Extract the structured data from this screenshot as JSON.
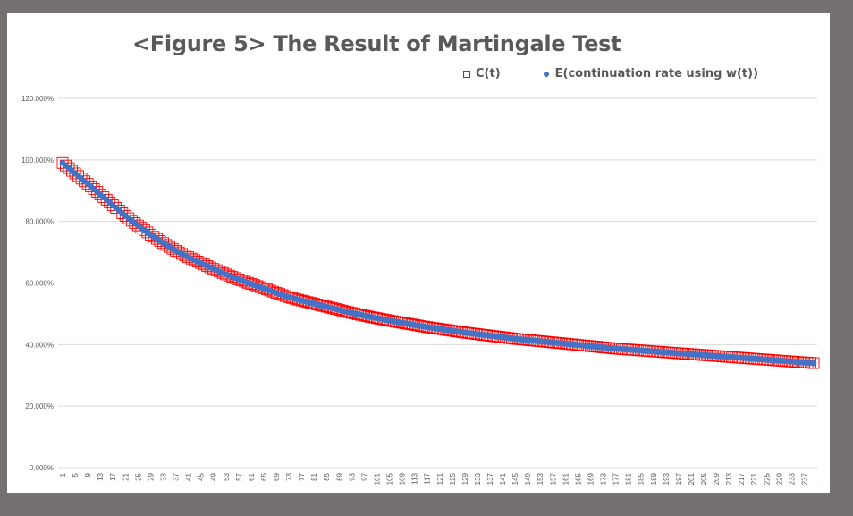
{
  "chart_data": {
    "type": "scatter",
    "title": "<Figure 5> The Result of Martingale Test",
    "xlabel": "",
    "ylabel": "",
    "ylim": [
      0,
      1.2
    ],
    "y_ticks": [
      "0.000%",
      "20.000%",
      "40.000%",
      "60.000%",
      "80.000%",
      "100.000%",
      "120.000%"
    ],
    "y_tick_values": [
      0,
      0.2,
      0.4,
      0.6,
      0.8,
      1.0,
      1.2
    ],
    "x_ticks": [
      1,
      5,
      9,
      13,
      17,
      21,
      25,
      29,
      33,
      37,
      41,
      45,
      49,
      53,
      57,
      61,
      65,
      69,
      73,
      77,
      81,
      85,
      89,
      93,
      97,
      101,
      105,
      109,
      113,
      117,
      121,
      125,
      129,
      133,
      137,
      141,
      145,
      149,
      153,
      157,
      161,
      165,
      169,
      173,
      177,
      181,
      185,
      189,
      193,
      197,
      201,
      205,
      209,
      213,
      217,
      221,
      225,
      229,
      233,
      237
    ],
    "x_range": [
      1,
      240
    ],
    "grid": true,
    "legend_position": "top",
    "series": [
      {
        "name": "C(t)",
        "marker": "square",
        "color": "#ff0000",
        "x": [
          1,
          5,
          9,
          13,
          17,
          21,
          25,
          29,
          33,
          37,
          41,
          45,
          49,
          53,
          57,
          61,
          65,
          69,
          73,
          77,
          81,
          85,
          89,
          93,
          97,
          101,
          105,
          109,
          113,
          117,
          121,
          125,
          129,
          133,
          137,
          141,
          145,
          149,
          153,
          157,
          161,
          165,
          169,
          173,
          177,
          181,
          185,
          189,
          193,
          197,
          201,
          205,
          209,
          213,
          217,
          221,
          225,
          229,
          233,
          237,
          240
        ],
        "values": [
          0.99,
          0.956,
          0.922,
          0.888,
          0.853,
          0.818,
          0.787,
          0.757,
          0.73,
          0.705,
          0.684,
          0.665,
          0.646,
          0.628,
          0.612,
          0.597,
          0.583,
          0.568,
          0.554,
          0.543,
          0.533,
          0.523,
          0.513,
          0.503,
          0.494,
          0.486,
          0.478,
          0.471,
          0.464,
          0.457,
          0.451,
          0.445,
          0.439,
          0.434,
          0.429,
          0.424,
          0.419,
          0.415,
          0.411,
          0.407,
          0.403,
          0.399,
          0.395,
          0.391,
          0.387,
          0.384,
          0.381,
          0.378,
          0.375,
          0.372,
          0.369,
          0.366,
          0.363,
          0.36,
          0.357,
          0.354,
          0.351,
          0.348,
          0.345,
          0.342,
          0.34
        ]
      },
      {
        "name": "E(continuation rate using w(t))",
        "marker": "dot",
        "color": "#4472c4",
        "x": [
          1,
          5,
          9,
          13,
          17,
          21,
          25,
          29,
          33,
          37,
          41,
          45,
          49,
          53,
          57,
          61,
          65,
          69,
          73,
          77,
          81,
          85,
          89,
          93,
          97,
          101,
          105,
          109,
          113,
          117,
          121,
          125,
          129,
          133,
          137,
          141,
          145,
          149,
          153,
          157,
          161,
          165,
          169,
          173,
          177,
          181,
          185,
          189,
          193,
          197,
          201,
          205,
          209,
          213,
          217,
          221,
          225,
          229,
          233,
          237,
          240
        ],
        "values": [
          0.99,
          0.956,
          0.922,
          0.888,
          0.853,
          0.818,
          0.787,
          0.757,
          0.73,
          0.705,
          0.684,
          0.665,
          0.646,
          0.628,
          0.612,
          0.597,
          0.583,
          0.568,
          0.554,
          0.543,
          0.533,
          0.523,
          0.513,
          0.503,
          0.494,
          0.486,
          0.478,
          0.471,
          0.464,
          0.457,
          0.451,
          0.445,
          0.439,
          0.434,
          0.429,
          0.424,
          0.419,
          0.415,
          0.411,
          0.407,
          0.403,
          0.399,
          0.395,
          0.391,
          0.387,
          0.384,
          0.381,
          0.378,
          0.375,
          0.372,
          0.369,
          0.366,
          0.363,
          0.36,
          0.357,
          0.354,
          0.351,
          0.348,
          0.345,
          0.342,
          0.34
        ]
      }
    ]
  },
  "colors": {
    "frame": "#767171",
    "background": "#ffffff",
    "gridline": "#d9d9d9",
    "text": "#595959"
  }
}
